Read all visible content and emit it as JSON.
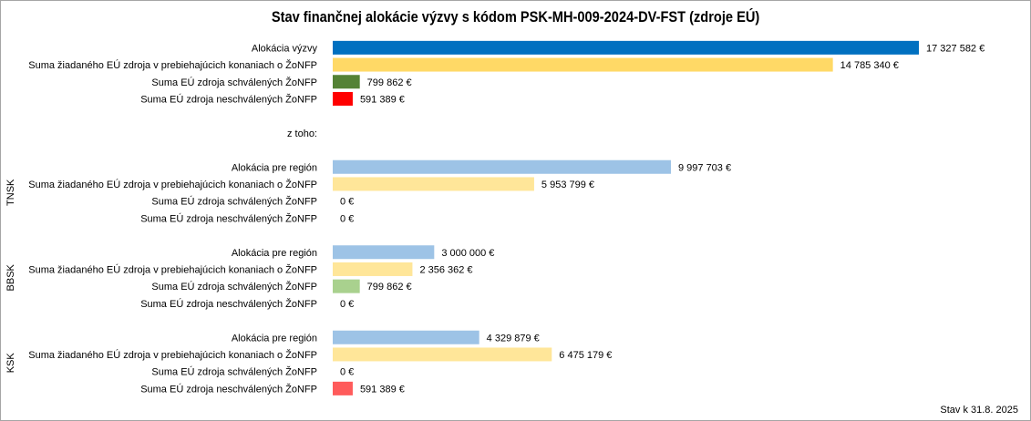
{
  "footer": "Stav k 31.8. 2025",
  "chart_data": {
    "type": "bar",
    "orientation": "horizontal",
    "title": "Stav finančnej alokácie výzvy s kódom PSK-MH-009-2024-DV-FST (zdroje EÚ)",
    "grid": false,
    "legend": "none",
    "xlim": [
      0,
      17327582
    ],
    "unit": "€",
    "rows": [
      {
        "group": "",
        "label": "Alokácia výzvy",
        "value": 17327582,
        "value_label": "17 327 582 €",
        "color": "#0070c0"
      },
      {
        "group": "",
        "label": "Suma žiadaného EÚ zdroja v prebiehajúcich konaniach o ŽoNFP",
        "value": 14785340,
        "value_label": "14 785 340 €",
        "color": "#ffd966"
      },
      {
        "group": "",
        "label": "Suma EÚ zdroja schválených ŽoNFP",
        "value": 799862,
        "value_label": "799 862 €",
        "color": "#548235"
      },
      {
        "group": "",
        "label": "Suma EÚ zdroja neschválených ŽoNFP",
        "value": 591389,
        "value_label": "591 389 €",
        "color": "#ff0000"
      },
      {
        "group": "",
        "label": "",
        "value": null,
        "value_label": "",
        "color": ""
      },
      {
        "group": "",
        "label": "z toho:",
        "value": null,
        "value_label": "",
        "color": ""
      },
      {
        "group": "",
        "label": "",
        "value": null,
        "value_label": "",
        "color": ""
      },
      {
        "group": "TNSK",
        "label": "Alokácia pre región",
        "value": 9997703,
        "value_label": "9 997 703 €",
        "color": "#9dc3e6"
      },
      {
        "group": "TNSK",
        "label": "Suma žiadaného EÚ zdroja v prebiehajúcich konaniach o ŽoNFP",
        "value": 5953799,
        "value_label": "5 953 799 €",
        "color": "#ffe699"
      },
      {
        "group": "TNSK",
        "label": "Suma EÚ zdroja schválených ŽoNFP",
        "value": 0,
        "value_label": "0 €",
        "color": "#a9d18e"
      },
      {
        "group": "TNSK",
        "label": "Suma EÚ zdroja neschválených ŽoNFP",
        "value": 0,
        "value_label": "0 €",
        "color": "#ff5b5b"
      },
      {
        "group": "",
        "label": "",
        "value": null,
        "value_label": "",
        "color": ""
      },
      {
        "group": "BBSK",
        "label": "Alokácia pre región",
        "value": 3000000,
        "value_label": "3 000 000 €",
        "color": "#9dc3e6"
      },
      {
        "group": "BBSK",
        "label": "Suma žiadaného EÚ zdroja v prebiehajúcich konaniach o ŽoNFP",
        "value": 2356362,
        "value_label": "2 356 362 €",
        "color": "#ffe699"
      },
      {
        "group": "BBSK",
        "label": "Suma EÚ zdroja schválených ŽoNFP",
        "value": 799862,
        "value_label": "799 862 €",
        "color": "#a9d18e"
      },
      {
        "group": "BBSK",
        "label": "Suma EÚ zdroja neschválených ŽoNFP",
        "value": 0,
        "value_label": "0 €",
        "color": "#ff5b5b"
      },
      {
        "group": "",
        "label": "",
        "value": null,
        "value_label": "",
        "color": ""
      },
      {
        "group": "KSK",
        "label": "Alokácia pre región",
        "value": 4329879,
        "value_label": "4 329 879 €",
        "color": "#9dc3e6"
      },
      {
        "group": "KSK",
        "label": "Suma žiadaného EÚ zdroja v prebiehajúcich konaniach o ŽoNFP",
        "value": 6475179,
        "value_label": "6 475 179 €",
        "color": "#ffe699"
      },
      {
        "group": "KSK",
        "label": "Suma EÚ zdroja schválených ŽoNFP",
        "value": 0,
        "value_label": "0 €",
        "color": "#a9d18e"
      },
      {
        "group": "KSK",
        "label": "Suma EÚ zdroja neschválených ŽoNFP",
        "value": 591389,
        "value_label": "591 389 €",
        "color": "#ff5b5b"
      }
    ],
    "groups": [
      "TNSK",
      "BBSK",
      "KSK"
    ]
  }
}
